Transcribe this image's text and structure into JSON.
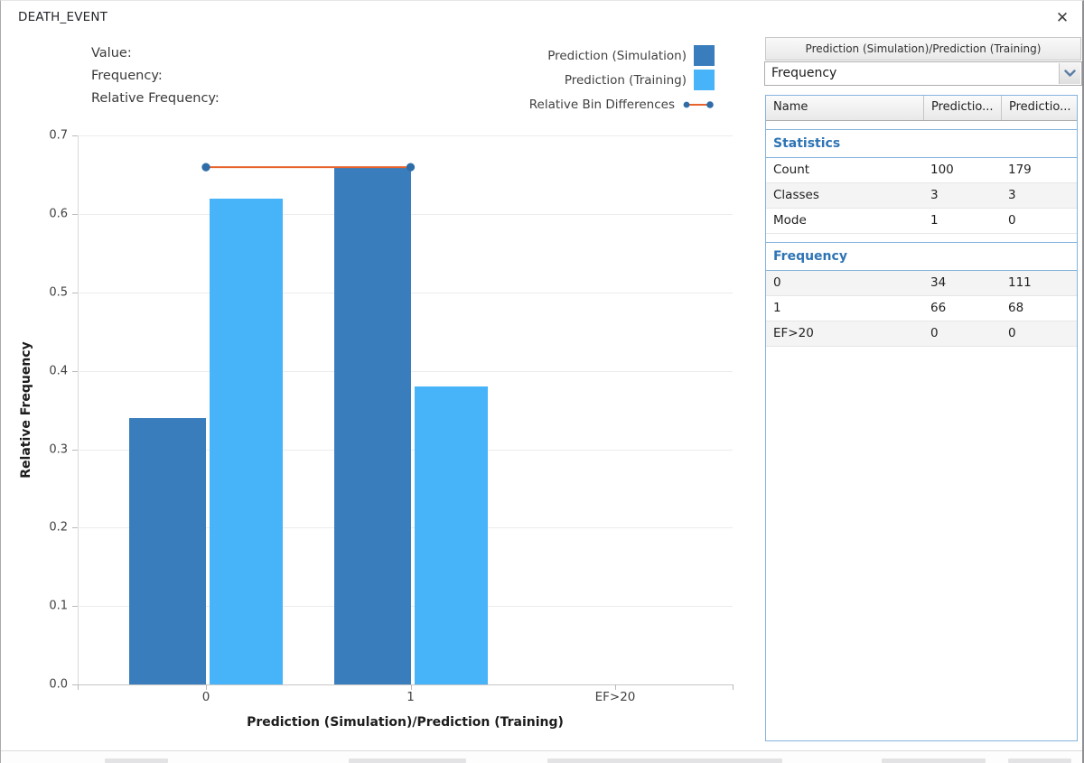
{
  "window": {
    "title": "DEATH_EVENT"
  },
  "icons": {
    "close": "✕"
  },
  "hover_info": {
    "value_label": "Value:",
    "frequency_label": "Frequency:",
    "relative_frequency_label": "Relative Frequency:"
  },
  "legend": [
    {
      "label": "Prediction (Simulation)",
      "swatch": "square",
      "color": "#3A7DBD"
    },
    {
      "label": "Prediction (Training)",
      "swatch": "square",
      "color": "#47B4FA"
    },
    {
      "label": "Relative Bin Differences",
      "swatch": "line-dots",
      "color": "#E8632C",
      "marker_color": "#2E6DA8"
    }
  ],
  "chart_data": {
    "type": "bar",
    "title": "",
    "categories": [
      "0",
      "1",
      "EF>20"
    ],
    "series": [
      {
        "name": "Prediction (Simulation)",
        "color": "#3A7DBD",
        "values": [
          0.34,
          0.66,
          0
        ]
      },
      {
        "name": "Prediction (Training)",
        "color": "#47B4FA",
        "values": [
          0.62,
          0.38,
          0
        ]
      }
    ],
    "line_series": {
      "name": "Relative Bin Differences",
      "color": "#E8632C",
      "marker_color": "#2E6DA8",
      "x": [
        "0",
        "1"
      ],
      "y": [
        0.66,
        0.66
      ]
    },
    "xlabel": "Prediction (Simulation)/Prediction (Training)",
    "ylabel": "Relative Frequency",
    "ylim": [
      0,
      0.7
    ],
    "yticks": [
      "0.0",
      "0.1",
      "0.2",
      "0.3",
      "0.4",
      "0.5",
      "0.6",
      "0.7"
    ],
    "grid": true,
    "legend_position": "top-right"
  },
  "panel": {
    "header": "Prediction (Simulation)/Prediction (Training)",
    "dropdown": {
      "value": "Frequency",
      "icon": "chevron-down"
    },
    "table": {
      "columns": [
        "Name",
        "Predictio...",
        "Predictio..."
      ],
      "sections": [
        {
          "title": "Statistics",
          "rows": [
            [
              "Count",
              "100",
              "179"
            ],
            [
              "Classes",
              "3",
              "3"
            ],
            [
              "Mode",
              "1",
              "0"
            ]
          ]
        },
        {
          "title": "Frequency",
          "rows": [
            [
              "0",
              "34",
              "111"
            ],
            [
              "1",
              "66",
              "68"
            ],
            [
              "EF>20",
              "0",
              "0"
            ]
          ]
        }
      ]
    }
  },
  "colors": {
    "section_title": "#2E74B5",
    "table_border": "#85B3DC",
    "stripe": "#F4F4F4",
    "grid": "#ECECEC",
    "axis": "#C7C7C7"
  }
}
